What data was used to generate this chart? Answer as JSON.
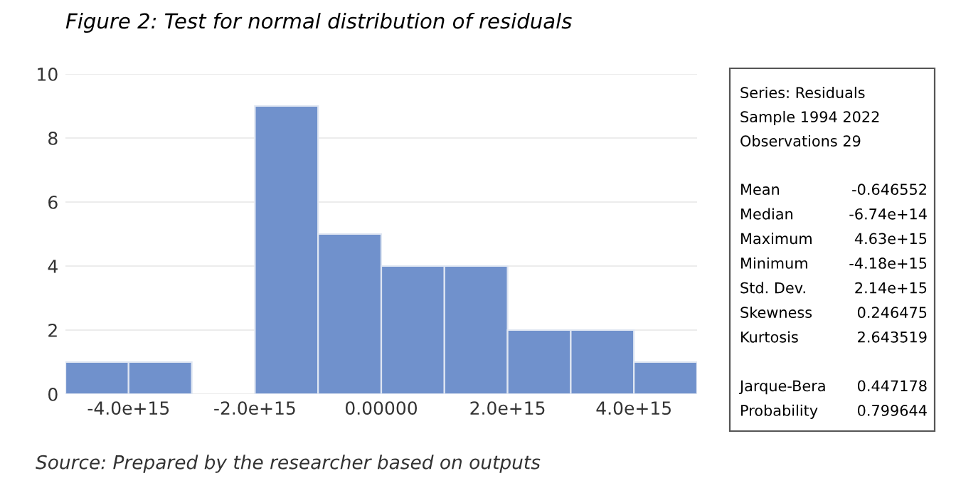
{
  "chart_data": {
    "type": "histogram",
    "title": "Figure 2: Test for normal distribution of residuals",
    "bins": [
      -5000000000000000.0,
      -4000000000000000.0,
      -3000000000000000.0,
      -2000000000000000.0,
      -1000000000000000.0,
      0,
      1000000000000000.0,
      2000000000000000.0,
      3000000000000000.0,
      4000000000000000.0,
      5000000000000000.0
    ],
    "values": [
      1,
      1,
      0,
      9,
      5,
      4,
      4,
      2,
      2,
      1
    ],
    "color": "#7091cc",
    "xlim": [
      -5000000000000000.0,
      5000000000000000.0
    ],
    "xticks": [
      {
        "value": -4000000000000000.0,
        "label": "-4.0e+15"
      },
      {
        "value": -2000000000000000.0,
        "label": "-2.0e+15"
      },
      {
        "value": 0,
        "label": "0.00000"
      },
      {
        "value": 2000000000000000.0,
        "label": "2.0e+15"
      },
      {
        "value": 4000000000000000.0,
        "label": "4.0e+15"
      }
    ],
    "ylim": [
      0,
      10
    ],
    "yticks": [
      0,
      2,
      4,
      6,
      8,
      10
    ],
    "grid": "y",
    "annotations": [
      "Source: Prepared by the researcher based on outputs",
      "Series: Residuals",
      "Sample 1994 2022",
      "Observations 29",
      "Mean",
      "-0.646552",
      "Median",
      "-6.74e+14",
      "Maximum",
      "4.63e+15",
      "Minimum",
      "-4.18e+15",
      "Std. Dev.",
      "2.14e+15",
      "Skewness",
      "0.246475",
      "Kurtosis",
      "2.643519",
      "Jarque-Bera",
      "0.447178",
      "Probability",
      "0.799644"
    ]
  }
}
